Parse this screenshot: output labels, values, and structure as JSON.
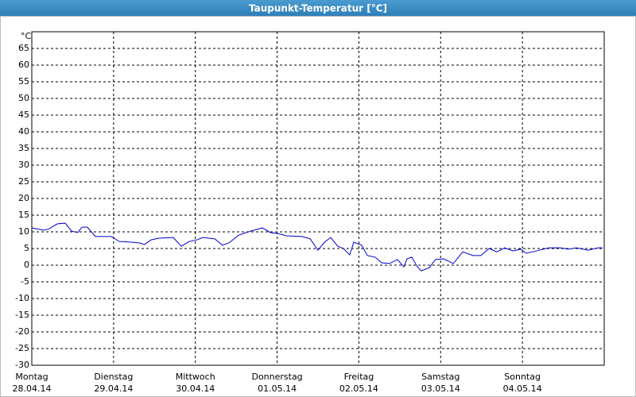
{
  "chart_data": {
    "type": "line",
    "title": "Taupunkt-Temperatur [°C]",
    "y_label": "°C",
    "xlim": [
      0,
      168
    ],
    "xticks": [
      {
        "value": 0,
        "label": "Montag"
      },
      {
        "value": 24,
        "label": "Dienstag"
      },
      {
        "value": 48,
        "label": "Mittwoch"
      },
      {
        "value": 72,
        "label": "Donnerstag"
      },
      {
        "value": 96,
        "label": "Freitag"
      },
      {
        "value": 120,
        "label": "Samstag"
      },
      {
        "value": 144,
        "label": "Sonntag"
      }
    ],
    "xtick_dates": [
      "28.04.14",
      "29.04.14",
      "30.04.14",
      "01.05.14",
      "02.05.14",
      "03.05.14",
      "04.05.14"
    ],
    "ylim": [
      -30,
      70
    ],
    "yticks": [
      -30,
      -25,
      -20,
      -15,
      -10,
      -5,
      0,
      5,
      10,
      15,
      20,
      25,
      30,
      35,
      40,
      45,
      50,
      55,
      60,
      65
    ],
    "grid": true,
    "series": [
      {
        "name": "Taupunkt-Temperatur",
        "color": "#0000cc",
        "x": [
          0,
          3.5,
          5.1,
          7.5,
          9.8,
          11.7,
          13.5,
          14.7,
          16.3,
          18.7,
          23.3,
          25.7,
          29.2,
          31.5,
          33.1,
          35,
          37.3,
          41.5,
          43.9,
          46.2,
          48.5,
          50.2,
          53.7,
          56,
          57.9,
          60.7,
          64.2,
          67.7,
          70,
          72.3,
          74.7,
          79.3,
          81.7,
          84,
          85.9,
          87.7,
          89.8,
          91.5,
          93.3,
          94.5,
          96.8,
          98.5,
          100.8,
          102.7,
          105,
          107.3,
          109.2,
          110.1,
          111.5,
          113.2,
          114.3,
          116.7,
          118.5,
          120.9,
          123.7,
          126.5,
          129.5,
          131.8,
          134.2,
          136.5,
          138.8,
          141.2,
          143.5,
          145.1,
          148.2,
          151.7,
          155.2,
          157.5,
          159.8,
          163.3,
          166.1,
          167.5
        ],
        "values": [
          11.2,
          10.5,
          10.9,
          12.4,
          12.6,
          10.2,
          9.8,
          11.4,
          11.4,
          8.6,
          8.6,
          7.1,
          6.9,
          6.7,
          6.2,
          7.6,
          8.1,
          8.3,
          5.7,
          7.1,
          7.6,
          8.3,
          7.9,
          6,
          6.7,
          9,
          10.2,
          11.2,
          9.8,
          9.5,
          8.8,
          8.6,
          7.9,
          4.5,
          6.9,
          8.3,
          5.7,
          5,
          3.1,
          6.9,
          6,
          2.9,
          2.4,
          0.7,
          0.5,
          1.7,
          -0.5,
          1.9,
          2.4,
          -0.5,
          -1.7,
          -0.7,
          1.7,
          1.9,
          0.5,
          4,
          2.9,
          2.9,
          5,
          4,
          5.2,
          4.3,
          4.8,
          3.6,
          4.3,
          5.2,
          5.2,
          4.8,
          5.2,
          4.5,
          5.2,
          5.2
        ]
      }
    ]
  }
}
